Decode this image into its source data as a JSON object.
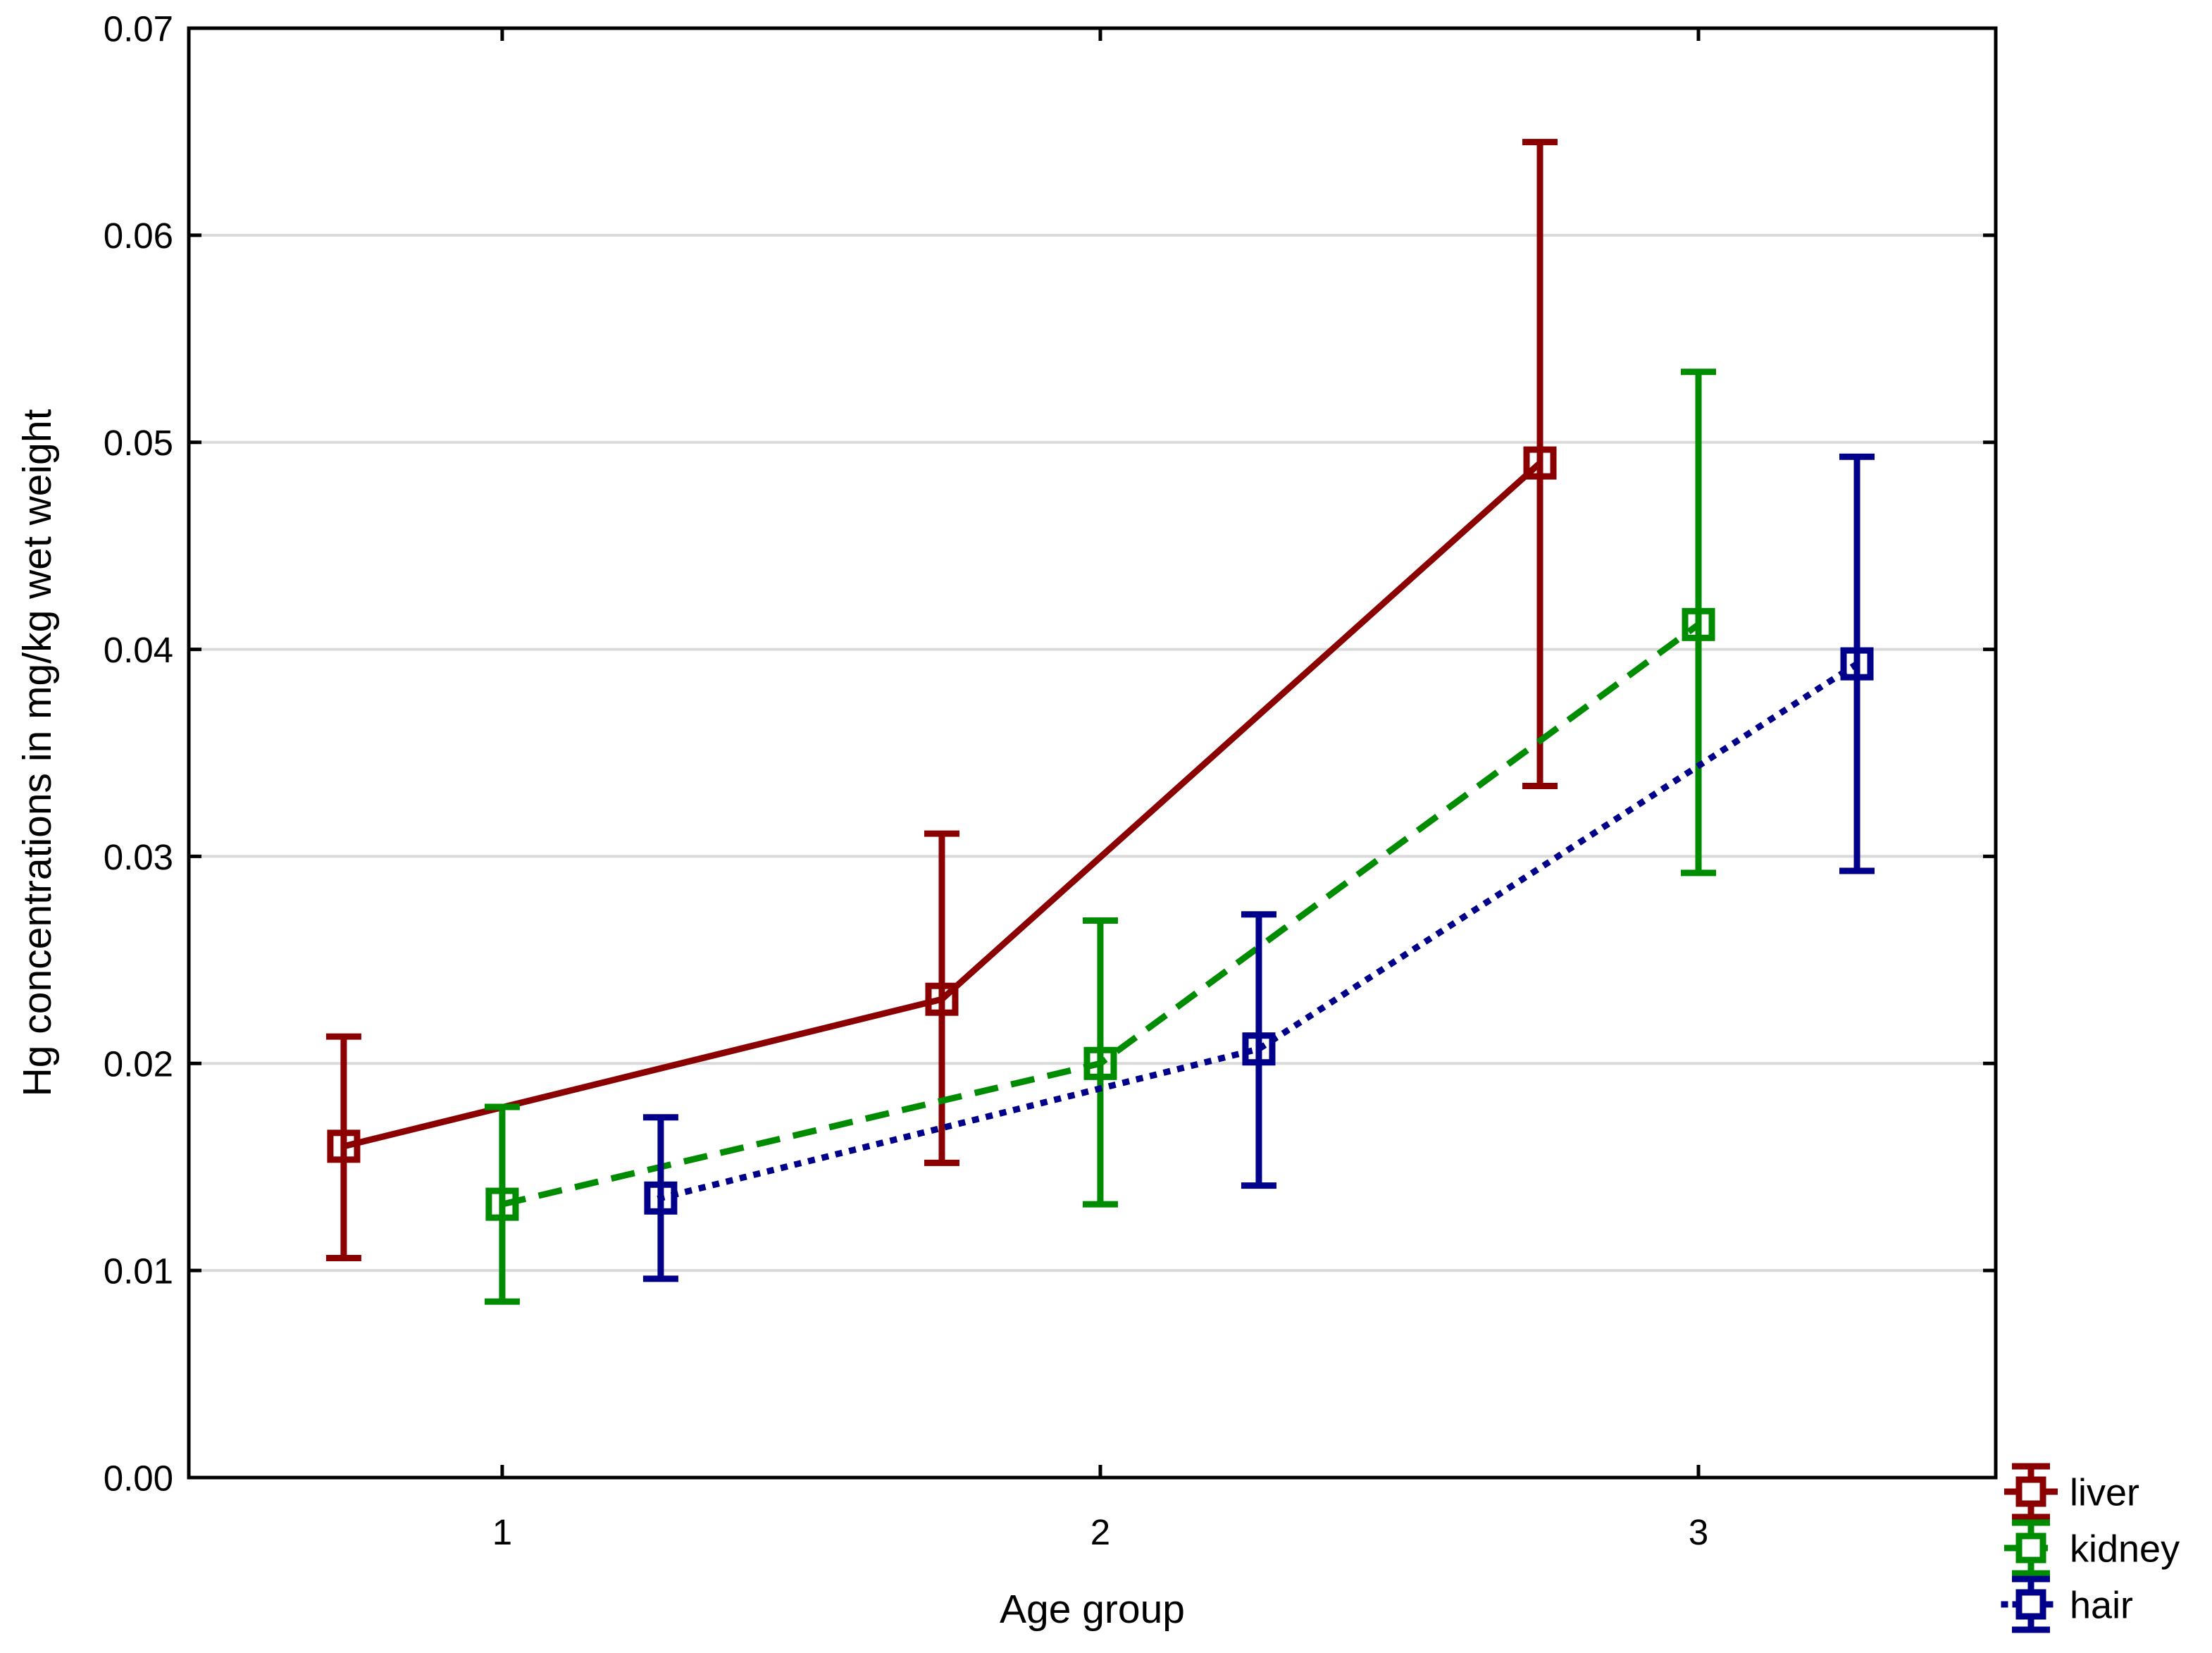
{
  "chart_data": {
    "type": "line",
    "subtype": "means-with-error-bars",
    "title": "",
    "xlabel": "Age group",
    "ylabel": "Hg concentrations in mg/kg wet weight",
    "categories": [
      1,
      2,
      3
    ],
    "x_tick_labels": [
      "1",
      "2",
      "3"
    ],
    "x_tick_values": [
      1,
      2,
      3
    ],
    "y_tick_labels": [
      "0.00",
      "0.01",
      "0.02",
      "0.03",
      "0.04",
      "0.05",
      "0.06",
      "0.07"
    ],
    "y_tick_values": [
      0,
      0.01,
      0.02,
      0.03,
      0.04,
      0.05,
      0.06,
      0.07
    ],
    "xlim": [
      0.476,
      3.497
    ],
    "ylim": [
      0,
      0.07
    ],
    "grid": "horizontal",
    "grid_color": "#DADADA",
    "frame_color": "#000000",
    "background_color": "#FFFFFF",
    "marker": "open-square",
    "legend_position": "bottom-right-outside",
    "series": [
      {
        "name": "liver",
        "color": "#8B0000",
        "line_style": "solid",
        "x_offset": -0.265,
        "means": [
          0.016,
          0.0231,
          0.049
        ],
        "upper": [
          0.0213,
          0.0311,
          0.0645
        ],
        "lower": [
          0.0106,
          0.0152,
          0.0334
        ]
      },
      {
        "name": "kidney",
        "color": "#008C00",
        "line_style": "dashed",
        "x_offset": 0,
        "means": [
          0.0132,
          0.02,
          0.0412
        ],
        "upper": [
          0.0179,
          0.0269,
          0.0534
        ],
        "lower": [
          0.0085,
          0.0132,
          0.0292
        ]
      },
      {
        "name": "hair",
        "color": "#00008B",
        "line_style": "dotted",
        "x_offset": 0.265,
        "means": [
          0.0135,
          0.0207,
          0.0393
        ],
        "upper": [
          0.0174,
          0.0272,
          0.0493
        ],
        "lower": [
          0.0096,
          0.0141,
          0.0293
        ]
      }
    ]
  }
}
